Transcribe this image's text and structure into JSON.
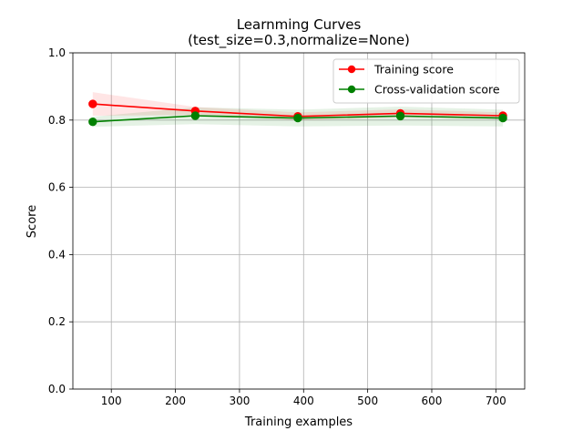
{
  "chart_data": {
    "type": "line",
    "title": "Learnming Curves",
    "subtitle": "(test_size=0.3,normalize=None)",
    "xlabel": "Training examples",
    "ylabel": "Score",
    "xlim": [
      40,
      745
    ],
    "ylim": [
      0.0,
      1.0
    ],
    "xticks": [
      100,
      200,
      300,
      400,
      500,
      600,
      700
    ],
    "xtick_labels": [
      "100",
      "200",
      "300",
      "400",
      "500",
      "600",
      "700"
    ],
    "yticks": [
      0.0,
      0.2,
      0.4,
      0.6,
      0.8,
      1.0
    ],
    "ytick_labels": [
      "0.0",
      "0.2",
      "0.4",
      "0.6",
      "0.8",
      "1.0"
    ],
    "grid": true,
    "legend_position": "top-right",
    "x": [
      71,
      231,
      391,
      551,
      711
    ],
    "series": [
      {
        "name": "Training score",
        "color": "#ff0000",
        "values": [
          0.848,
          0.827,
          0.811,
          0.82,
          0.813
        ],
        "band": [
          0.035,
          0.012,
          0.012,
          0.012,
          0.01
        ]
      },
      {
        "name": "Cross-validation score",
        "color": "#008000",
        "values": [
          0.795,
          0.813,
          0.806,
          0.812,
          0.806
        ],
        "band": [
          0.015,
          0.025,
          0.025,
          0.028,
          0.025
        ]
      }
    ]
  }
}
